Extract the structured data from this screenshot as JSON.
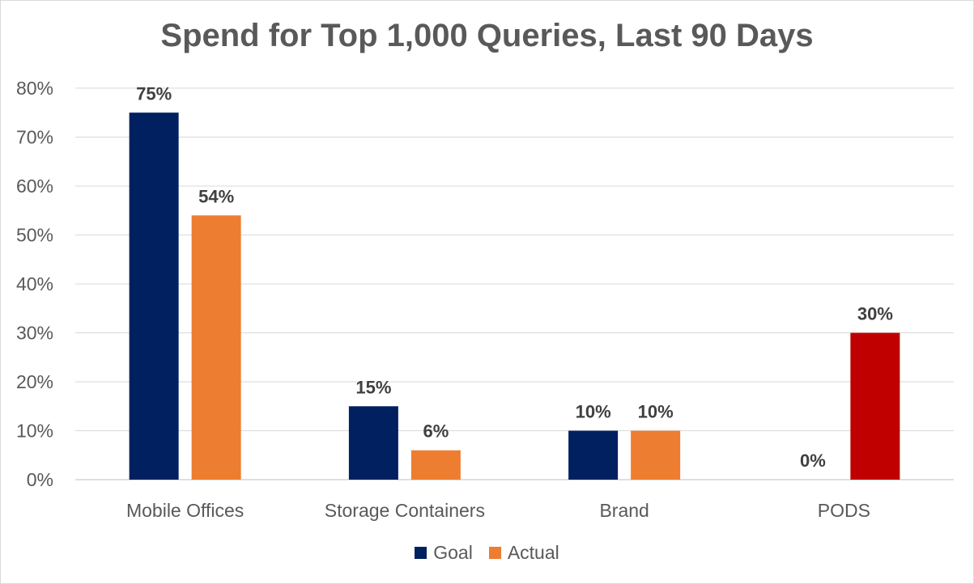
{
  "chart_data": {
    "type": "bar",
    "title": "Spend for Top 1,000 Queries, Last 90 Days",
    "categories": [
      "Mobile Offices",
      "Storage Containers",
      "Brand",
      "PODS"
    ],
    "series": [
      {
        "name": "Goal",
        "values": [
          75,
          15,
          10,
          0
        ],
        "color": "#002060"
      },
      {
        "name": "Actual",
        "values": [
          54,
          6,
          10,
          30
        ],
        "color": "#ED7D31",
        "point_colors": [
          "#ED7D31",
          "#ED7D31",
          "#ED7D31",
          "#C00000"
        ]
      }
    ],
    "data_labels": [
      [
        "75%",
        "15%",
        "10%",
        "0%"
      ],
      [
        "54%",
        "6%",
        "10%",
        "30%"
      ]
    ],
    "yticks": [
      "0%",
      "10%",
      "20%",
      "30%",
      "40%",
      "50%",
      "60%",
      "70%",
      "80%"
    ],
    "ylim": [
      0,
      80
    ],
    "xlabel": "",
    "ylabel": "",
    "grid": true,
    "legend": "bottom"
  }
}
